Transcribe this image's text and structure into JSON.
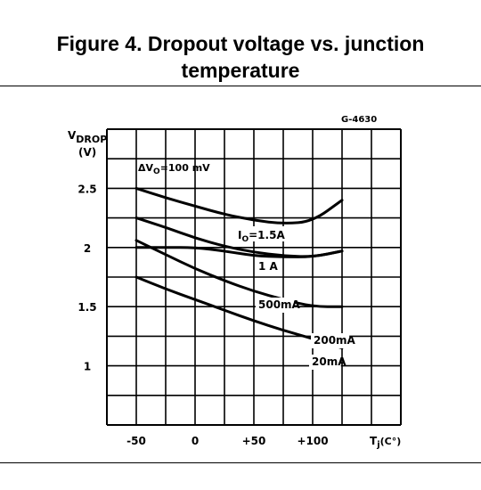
{
  "title": {
    "line1": "Figure 4. Dropout voltage vs. junction",
    "line2": "temperature"
  },
  "chart_data": {
    "type": "line",
    "code": "G-4630",
    "ylabel_main": "V",
    "ylabel_sub": "DROP",
    "yunit": "(V)",
    "xlabel_main": "T",
    "xlabel_sub": "j",
    "xunit": "(C°)",
    "condition_prefix": "ΔV",
    "condition_sub": "O",
    "condition_value": "=100 mV",
    "xlim": [
      -50,
      100
    ],
    "ylim": [
      0.75,
      3.0
    ],
    "x_ticks": [
      {
        "value": -50,
        "label": "-50"
      },
      {
        "value": 0,
        "label": "0"
      },
      {
        "value": 50,
        "label": "+50"
      },
      {
        "value": 100,
        "label": "+100"
      }
    ],
    "y_ticks": [
      {
        "value": 1,
        "label": "1"
      },
      {
        "value": 1.5,
        "label": "1.5"
      },
      {
        "value": 2,
        "label": "2"
      },
      {
        "value": 2.5,
        "label": "2.5"
      }
    ],
    "grid": true,
    "x": [
      -50,
      -25,
      0,
      25,
      50,
      75,
      100,
      125
    ],
    "series": [
      {
        "name": "IO=1.5A",
        "label_main": "I",
        "label_sub": "O",
        "label_rest": "=1.5A",
        "values": [
          2.5,
          2.42,
          2.35,
          2.28,
          2.23,
          2.2,
          2.22,
          2.4
        ]
      },
      {
        "name": "1 A",
        "label_main": "1 A",
        "values": [
          2.25,
          2.17,
          2.08,
          2.01,
          1.96,
          1.93,
          1.92,
          1.97
        ]
      },
      {
        "name": "500mA",
        "label_main": "500mA",
        "values": [
          2.0,
          2.0,
          2.0,
          1.97,
          1.93,
          1.92,
          1.92,
          1.97
        ]
      },
      {
        "name": "200mA",
        "label_main": "200mA",
        "values": [
          2.06,
          1.94,
          1.82,
          1.72,
          1.63,
          1.56,
          1.5,
          1.5
        ]
      },
      {
        "name": "20mA",
        "label_main": "20mA",
        "values": [
          1.75,
          1.65,
          1.56,
          1.47,
          1.38,
          1.3,
          1.23,
          1.15
        ]
      }
    ]
  }
}
